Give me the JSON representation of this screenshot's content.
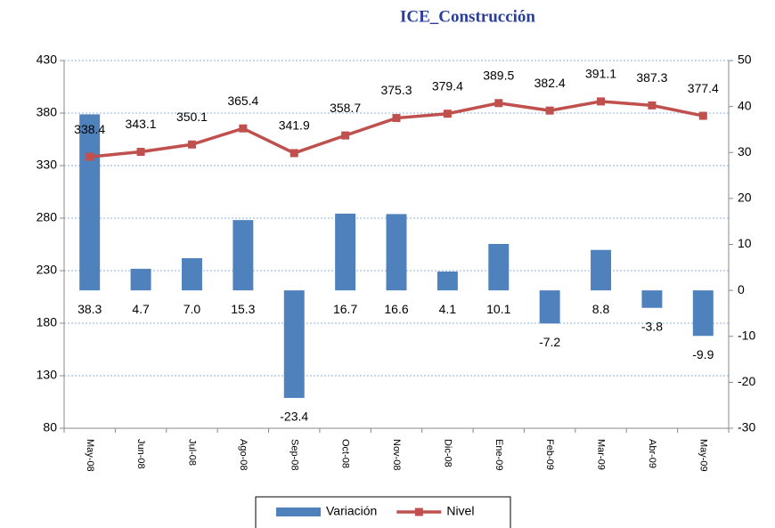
{
  "chart_data": {
    "type": "combo",
    "title": "ICE_Construcción",
    "categories": [
      "May-08",
      "Jun-08",
      "Jul-08",
      "Ago-08",
      "Sep-08",
      "Oct-08",
      "Nov-08",
      "Dic-08",
      "Ene-09",
      "Feb-09",
      "Mar-09",
      "Abr-09",
      "May-09"
    ],
    "series": [
      {
        "name": "Variación",
        "type": "bar",
        "axis": "y2",
        "color": "#4f81bd",
        "values": [
          38.3,
          4.7,
          7.0,
          15.3,
          -23.4,
          16.7,
          16.6,
          4.1,
          10.1,
          -7.2,
          8.8,
          -3.8,
          -9.9
        ],
        "value_labels": [
          "38.3",
          "4.7",
          "7.0",
          "15.3",
          "-23.4",
          "16.7",
          "16.6",
          "4.1",
          "10.1",
          "-7.2",
          "8.8",
          "-3.8",
          "-9.9"
        ]
      },
      {
        "name": "Nivel",
        "type": "line",
        "color": "#c0504d",
        "values": [
          338.4,
          343.1,
          350.1,
          365.4,
          341.9,
          358.7,
          375.3,
          379.4,
          389.5,
          382.4,
          391.1,
          387.3,
          377.4
        ]
      }
    ],
    "ylim": [
      80,
      430
    ],
    "yticks": [
      80,
      130,
      180,
      230,
      280,
      330,
      380,
      430
    ],
    "y2lim": [
      -30,
      50
    ],
    "y2ticks": [
      -30,
      -20,
      -10,
      0,
      10,
      20,
      30,
      40,
      50
    ],
    "grid": true,
    "legend": "bottom"
  }
}
